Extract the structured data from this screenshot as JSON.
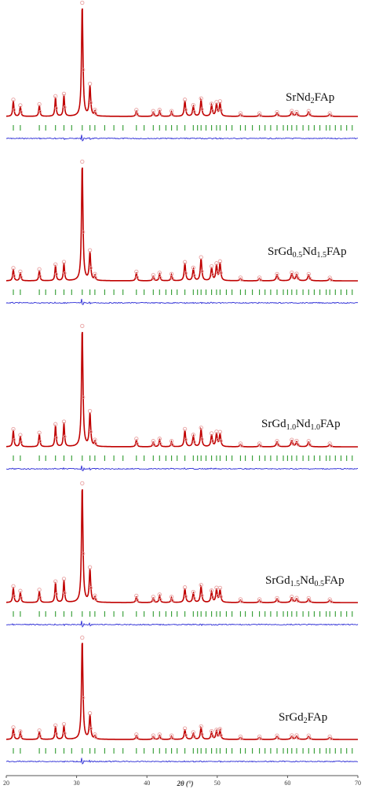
{
  "chart_data": {
    "type": "line",
    "xlabel": "2θ (°)",
    "xlim": [
      20,
      70
    ],
    "x_ticks": [
      20,
      30,
      40,
      50,
      60,
      70
    ],
    "grid": false,
    "colors": {
      "observed": "#e8a0a0",
      "calculated": "#c00000",
      "bragg": "#2e9a2e",
      "difference": "#2b2bd6",
      "axis": "#555555"
    },
    "peaks": [
      {
        "pos": 21.0,
        "width": 0.1
      },
      {
        "pos": 22.0,
        "width": 0.1
      },
      {
        "pos": 24.7,
        "width": 0.1
      },
      {
        "pos": 27.0,
        "width": 0.1
      },
      {
        "pos": 28.2,
        "width": 0.1
      },
      {
        "pos": 30.8,
        "width": 0.12
      },
      {
        "pos": 31.9,
        "width": 0.12
      },
      {
        "pos": 32.6,
        "width": 0.1
      },
      {
        "pos": 38.5,
        "width": 0.1
      },
      {
        "pos": 40.9,
        "width": 0.1
      },
      {
        "pos": 41.8,
        "width": 0.1
      },
      {
        "pos": 43.5,
        "width": 0.1
      },
      {
        "pos": 45.4,
        "width": 0.12
      },
      {
        "pos": 46.6,
        "width": 0.12
      },
      {
        "pos": 47.7,
        "width": 0.12
      },
      {
        "pos": 49.2,
        "width": 0.12
      },
      {
        "pos": 49.9,
        "width": 0.12
      },
      {
        "pos": 50.4,
        "width": 0.12
      },
      {
        "pos": 53.3,
        "width": 0.12
      },
      {
        "pos": 56.0,
        "width": 0.12
      },
      {
        "pos": 58.5,
        "width": 0.15
      },
      {
        "pos": 60.6,
        "width": 0.15
      },
      {
        "pos": 61.3,
        "width": 0.15
      },
      {
        "pos": 63.0,
        "width": 0.15
      },
      {
        "pos": 66.0,
        "width": 0.15
      }
    ],
    "bragg_positions": [
      21.0,
      22.0,
      24.7,
      25.6,
      27.0,
      28.2,
      29.3,
      30.8,
      31.9,
      32.6,
      34.0,
      35.3,
      36.6,
      38.5,
      39.6,
      40.9,
      41.8,
      42.7,
      43.5,
      44.3,
      45.4,
      46.6,
      47.2,
      47.7,
      48.4,
      49.2,
      49.9,
      50.4,
      51.3,
      52.1,
      53.3,
      54.0,
      55.0,
      56.0,
      56.8,
      57.6,
      58.5,
      59.4,
      60.0,
      60.6,
      61.3,
      62.2,
      63.0,
      63.8,
      64.6,
      65.5,
      66.0,
      66.8,
      67.6,
      68.4,
      69.2
    ],
    "panels": [
      {
        "label_base": "SrNd",
        "label_parts": [
          {
            "t": "SrNd",
            "s": false
          },
          {
            "t": "2",
            "s": true
          },
          {
            "t": "FAp",
            "s": false
          }
        ],
        "intensities": [
          0.14,
          0.09,
          0.1,
          0.17,
          0.19,
          1.0,
          0.27,
          0.04,
          0.05,
          0.04,
          0.05,
          0.04,
          0.14,
          0.09,
          0.15,
          0.1,
          0.11,
          0.12,
          0.02,
          0.02,
          0.03,
          0.04,
          0.03,
          0.04,
          0.02
        ]
      },
      {
        "label_parts": [
          {
            "t": "SrGd",
            "s": false
          },
          {
            "t": "0.5",
            "s": true
          },
          {
            "t": "Nd",
            "s": false
          },
          {
            "t": "1.5",
            "s": true
          },
          {
            "t": "FAp",
            "s": false
          }
        ],
        "intensities": [
          0.1,
          0.07,
          0.09,
          0.13,
          0.15,
          1.0,
          0.24,
          0.04,
          0.07,
          0.04,
          0.06,
          0.05,
          0.15,
          0.1,
          0.19,
          0.11,
          0.13,
          0.15,
          0.02,
          0.02,
          0.05,
          0.06,
          0.05,
          0.05,
          0.02
        ]
      },
      {
        "label_parts": [
          {
            "t": "SrGd",
            "s": false
          },
          {
            "t": "1.0",
            "s": true
          },
          {
            "t": "Nd",
            "s": false
          },
          {
            "t": "1.0",
            "s": true
          },
          {
            "t": "FAp",
            "s": false
          }
        ],
        "intensities": [
          0.14,
          0.09,
          0.11,
          0.18,
          0.2,
          1.0,
          0.28,
          0.04,
          0.06,
          0.04,
          0.06,
          0.04,
          0.14,
          0.09,
          0.15,
          0.1,
          0.11,
          0.11,
          0.02,
          0.02,
          0.04,
          0.05,
          0.04,
          0.04,
          0.02
        ]
      },
      {
        "label_parts": [
          {
            "t": "SrGd",
            "s": false
          },
          {
            "t": "1.5",
            "s": true
          },
          {
            "t": "Nd",
            "s": false
          },
          {
            "t": "0.5",
            "s": true
          },
          {
            "t": "FAp",
            "s": false
          }
        ],
        "intensities": [
          0.13,
          0.09,
          0.1,
          0.17,
          0.19,
          1.0,
          0.28,
          0.04,
          0.05,
          0.04,
          0.06,
          0.04,
          0.12,
          0.08,
          0.14,
          0.09,
          0.11,
          0.11,
          0.02,
          0.02,
          0.03,
          0.04,
          0.03,
          0.03,
          0.02
        ]
      },
      {
        "label_parts": [
          {
            "t": "SrGd",
            "s": false
          },
          {
            "t": "2",
            "s": true
          },
          {
            "t": "FAp",
            "s": false
          }
        ],
        "intensities": [
          0.11,
          0.07,
          0.08,
          0.13,
          0.14,
          1.0,
          0.24,
          0.03,
          0.04,
          0.03,
          0.04,
          0.03,
          0.1,
          0.06,
          0.12,
          0.07,
          0.08,
          0.09,
          0.02,
          0.02,
          0.03,
          0.03,
          0.03,
          0.03,
          0.02
        ]
      }
    ]
  }
}
